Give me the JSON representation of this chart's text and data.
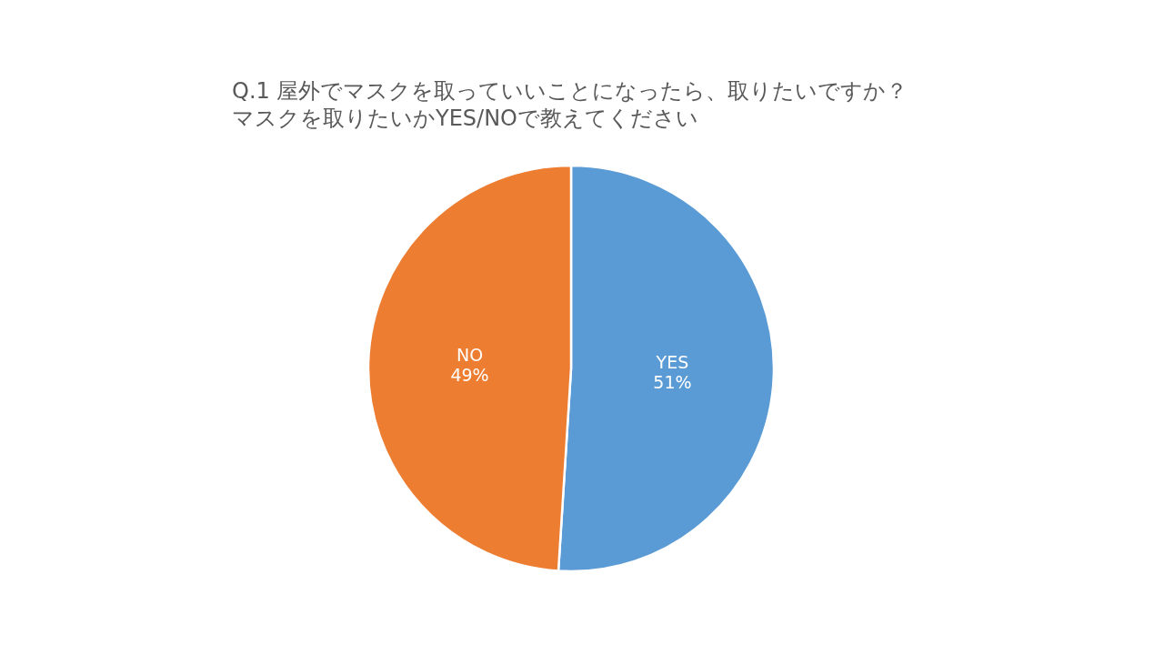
{
  "chart_data": {
    "type": "pie",
    "title": "Q.1 屋外でマスクを取っていいことになったら、取りたいですか？",
    "subtitle": "マスクを取りたいかYES/NOで教えてください",
    "categories": [
      "YES",
      "NO"
    ],
    "values": [
      51,
      49
    ],
    "colors": [
      "#5b9bd5",
      "#ed7d31"
    ],
    "value_labels": [
      "51%",
      "49%"
    ]
  }
}
